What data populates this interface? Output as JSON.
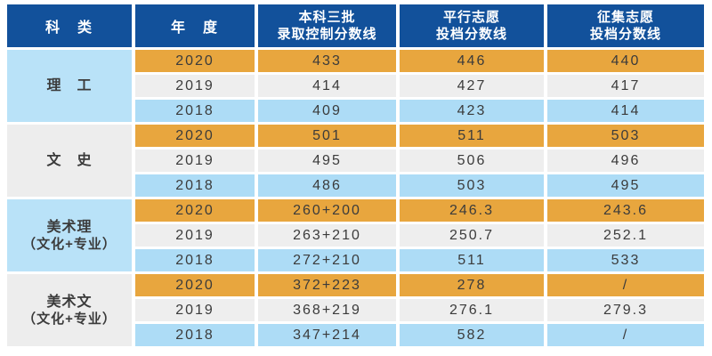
{
  "colors": {
    "header_bg": "#12519B",
    "header_text": "#FFFFFF",
    "row_2020_bg": "#E8A63E",
    "row_2019_bg": "#EEEEEE",
    "row_2018_bg": "#ADDCF6",
    "category_blue_bg": "#B9E2F8",
    "category_gray_bg": "#EDEDED",
    "body_text": "#3B3B3B"
  },
  "table": {
    "header": {
      "category": "科　类",
      "year": "年　度",
      "batch_l1": "本科三批",
      "batch_l2": "录取控制分数线",
      "parallel_l1": "平行志愿",
      "parallel_l2": "投档分数线",
      "collect_l1": "征集志愿",
      "collect_l2": "投档分数线"
    },
    "groups": [
      {
        "category_l1": "理　工",
        "category_l2": "",
        "rows": [
          {
            "year": "2020",
            "v1": "433",
            "v2": "446",
            "v3": "440"
          },
          {
            "year": "2019",
            "v1": "414",
            "v2": "427",
            "v3": "417"
          },
          {
            "year": "2018",
            "v1": "409",
            "v2": "423",
            "v3": "414"
          }
        ]
      },
      {
        "category_l1": "文　史",
        "category_l2": "",
        "rows": [
          {
            "year": "2020",
            "v1": "501",
            "v2": "511",
            "v3": "503"
          },
          {
            "year": "2019",
            "v1": "495",
            "v2": "506",
            "v3": "496"
          },
          {
            "year": "2018",
            "v1": "486",
            "v2": "503",
            "v3": "495"
          }
        ]
      },
      {
        "category_l1": "美术理",
        "category_l2": "（文化+专业）",
        "rows": [
          {
            "year": "2020",
            "v1": "260+200",
            "v2": "246.3",
            "v3": "243.6"
          },
          {
            "year": "2019",
            "v1": "263+210",
            "v2": "250.7",
            "v3": "252.1"
          },
          {
            "year": "2018",
            "v1": "272+210",
            "v2": "511",
            "v3": "533"
          }
        ]
      },
      {
        "category_l1": "美术文",
        "category_l2": "（文化+专业）",
        "rows": [
          {
            "year": "2020",
            "v1": "372+223",
            "v2": "278",
            "v3": "/"
          },
          {
            "year": "2019",
            "v1": "368+219",
            "v2": "276.1",
            "v3": "279.3"
          },
          {
            "year": "2018",
            "v1": "347+214",
            "v2": "582",
            "v3": "/"
          }
        ]
      }
    ]
  },
  "chart_data": {
    "type": "table",
    "columns": [
      "科类",
      "年度",
      "本科三批录取控制分数线",
      "平行志愿投档分数线",
      "征集志愿投档分数线"
    ],
    "rows": [
      [
        "理工",
        "2020",
        "433",
        "446",
        "440"
      ],
      [
        "理工",
        "2019",
        "414",
        "427",
        "417"
      ],
      [
        "理工",
        "2018",
        "409",
        "423",
        "414"
      ],
      [
        "文史",
        "2020",
        "501",
        "511",
        "503"
      ],
      [
        "文史",
        "2019",
        "495",
        "506",
        "496"
      ],
      [
        "文史",
        "2018",
        "486",
        "503",
        "495"
      ],
      [
        "美术理（文化+专业）",
        "2020",
        "260+200",
        "246.3",
        "243.6"
      ],
      [
        "美术理（文化+专业）",
        "2019",
        "263+210",
        "250.7",
        "252.1"
      ],
      [
        "美术理（文化+专业）",
        "2018",
        "272+210",
        "511",
        "533"
      ],
      [
        "美术文（文化+专业）",
        "2020",
        "372+223",
        "278",
        "/"
      ],
      [
        "美术文（文化+专业）",
        "2019",
        "368+219",
        "276.1",
        "279.3"
      ],
      [
        "美术文（文化+专业）",
        "2018",
        "347+214",
        "582",
        "/"
      ]
    ]
  }
}
